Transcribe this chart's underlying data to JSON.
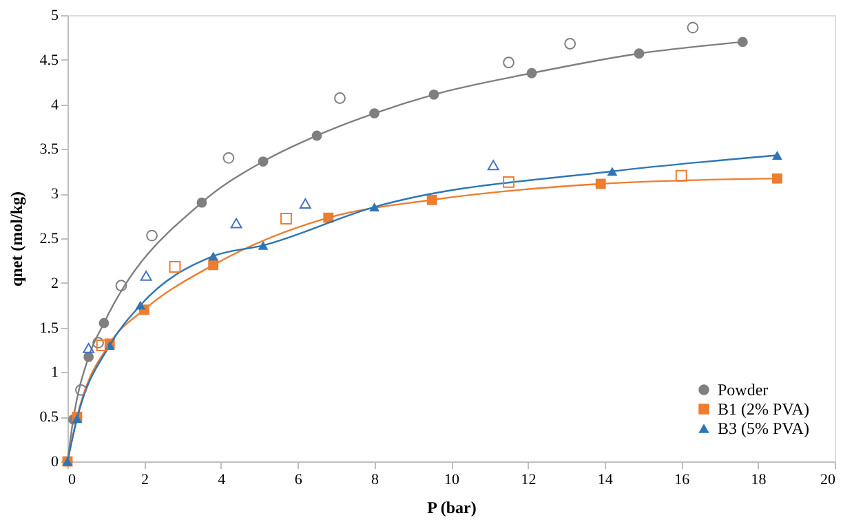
{
  "chart_data": {
    "type": "line",
    "xlabel": "P (bar)",
    "ylabel": "qnet (mol/kg)",
    "xlim": [
      0,
      20
    ],
    "xticks": [
      0,
      2,
      4,
      6,
      8,
      10,
      12,
      14,
      16,
      18,
      20
    ],
    "ylim": [
      0,
      5
    ],
    "yticks": [
      0,
      0.5,
      1,
      1.5,
      2,
      2.5,
      3,
      3.5,
      4,
      4.5,
      5
    ],
    "grid": false,
    "legend": "bottom right",
    "series": [
      {
        "name": "Powder",
        "marker": "circle",
        "color": "#7f7f7f",
        "x": [
          0,
          0.15,
          0.55,
          0.95,
          3.5,
          5.1,
          6.5,
          8,
          9.55,
          12.1,
          14.9,
          17.6
        ],
        "values": [
          0,
          0.47,
          1.17,
          1.55,
          2.9,
          3.36,
          3.65,
          3.9,
          4.11,
          4.35,
          4.57,
          4.7
        ]
      },
      {
        "name": "B1 (2% PVA)",
        "marker": "square",
        "color": "#ed7d31",
        "x": [
          0,
          0.25,
          1.1,
          2,
          3.8,
          6.8,
          9.5,
          13.9,
          18.5
        ],
        "values": [
          0,
          0.5,
          1.32,
          1.7,
          2.2,
          2.73,
          2.93,
          3.11,
          3.17
        ]
      },
      {
        "name": "B3 (5% PVA)",
        "marker": "triangle",
        "color": "#2e75b6",
        "x": [
          0,
          0.25,
          1.1,
          1.9,
          3.8,
          5.1,
          8,
          14.2,
          18.5
        ],
        "values": [
          0,
          0.48,
          1.3,
          1.75,
          2.3,
          2.42,
          2.85,
          3.25,
          3.43
        ]
      },
      {
        "type": "scatter",
        "marker": "circle",
        "color": "#7f7f7f",
        "x": [
          0.35,
          0.8,
          1.4,
          2.2,
          4.2,
          7.1,
          11.5,
          13.1,
          16.3
        ],
        "values": [
          0.8,
          1.33,
          1.97,
          2.53,
          3.4,
          4.07,
          4.47,
          4.68,
          4.86
        ]
      },
      {
        "type": "scatter",
        "marker": "square",
        "color": "#ed7d31",
        "x": [
          0.9,
          2.8,
          5.7,
          11.5,
          16
        ],
        "values": [
          1.3,
          2.18,
          2.72,
          3.13,
          3.2
        ]
      },
      {
        "type": "scatter",
        "marker": "triangle",
        "color": "#4472c4",
        "x": [
          0.55,
          2.05,
          4.4,
          6.2,
          11.1
        ],
        "values": [
          1.27,
          2.08,
          2.67,
          2.89,
          3.32
        ]
      }
    ]
  }
}
